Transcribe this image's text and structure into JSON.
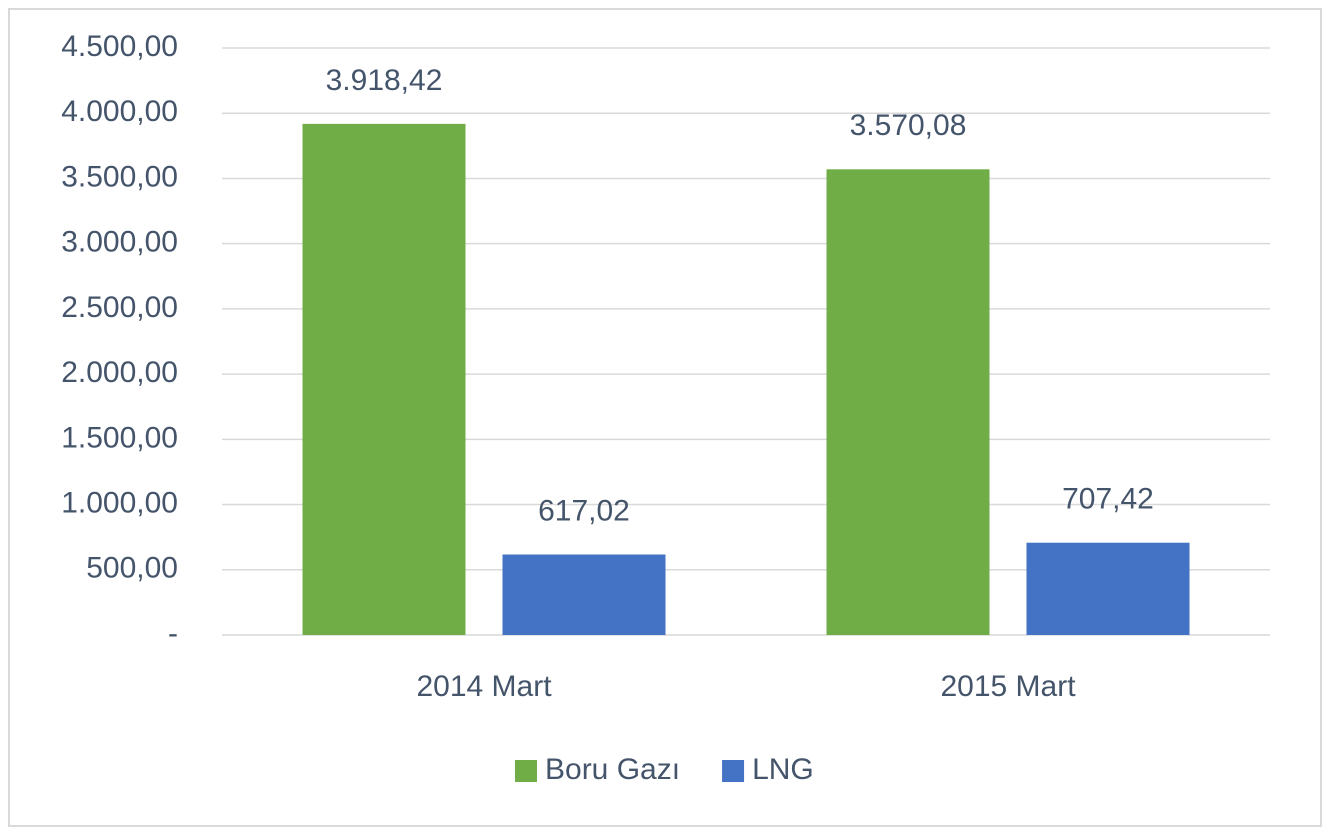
{
  "chart_data": {
    "type": "bar",
    "categories": [
      "2014 Mart",
      "2015 Mart"
    ],
    "series": [
      {
        "name": "Boru Gazı",
        "color": "#70ad47",
        "values": [
          3918.42,
          3570.08
        ],
        "value_labels": [
          "3.918,42",
          "3.570,08"
        ]
      },
      {
        "name": "LNG",
        "color": "#4472c4",
        "values": [
          617.02,
          707.42
        ],
        "value_labels": [
          "617,02",
          "707,42"
        ]
      }
    ],
    "ylim": [
      0,
      4500
    ],
    "yticks": [
      {
        "value": 0,
        "label": "-"
      },
      {
        "value": 500,
        "label": "500,00"
      },
      {
        "value": 1000,
        "label": "1.000,00"
      },
      {
        "value": 1500,
        "label": "1.500,00"
      },
      {
        "value": 2000,
        "label": "2.000,00"
      },
      {
        "value": 2500,
        "label": "2.500,00"
      },
      {
        "value": 3000,
        "label": "3.000,00"
      },
      {
        "value": 3500,
        "label": "3.500,00"
      },
      {
        "value": 4000,
        "label": "4.000,00"
      },
      {
        "value": 4500,
        "label": "4.500,00"
      }
    ],
    "grid": true,
    "legend": "bottom"
  }
}
